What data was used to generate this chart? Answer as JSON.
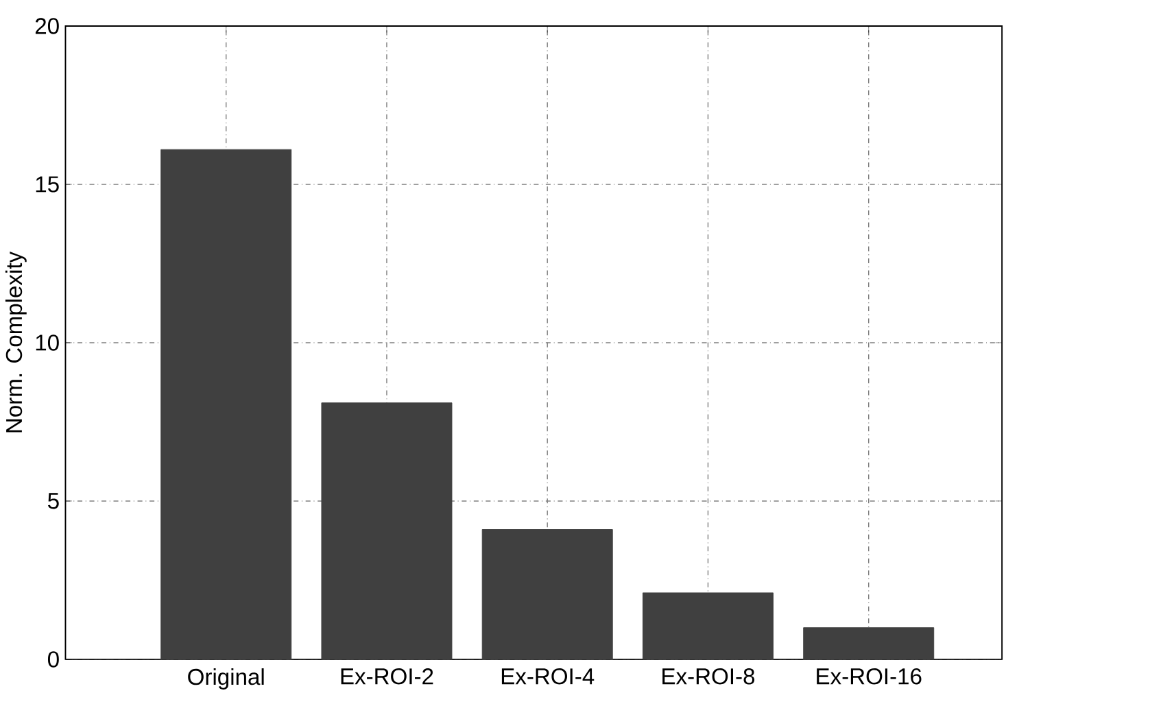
{
  "chart_data": {
    "type": "bar",
    "ylabel": "Norm. Complexity",
    "categories": [
      "Original",
      "Ex-ROI-2",
      "Ex-ROI-4",
      "Ex-ROI-8",
      "Ex-ROI-16"
    ],
    "values": [
      16.1,
      8.1,
      4.1,
      2.1,
      1.0
    ],
    "color": "#404040",
    "ylim": [
      0,
      20
    ],
    "yticks": [
      0,
      5,
      10,
      15,
      20
    ],
    "grid": true
  }
}
